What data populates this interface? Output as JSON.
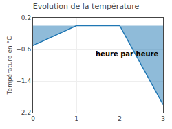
{
  "chart_data": {
    "type": "area",
    "title": "Evolution de la température",
    "xlabel": "heure par heure",
    "ylabel": "Température en °C",
    "x": [
      0,
      1,
      2,
      3
    ],
    "values": [
      -0.5,
      0.0,
      0.0,
      -2.0
    ],
    "xlim": [
      0,
      3
    ],
    "ylim": [
      -2.2,
      0.2
    ],
    "xticks": [
      0,
      1,
      2,
      3
    ],
    "yticks": [
      0.2,
      -0.6,
      -1.4,
      -2.2
    ],
    "grid": true
  }
}
